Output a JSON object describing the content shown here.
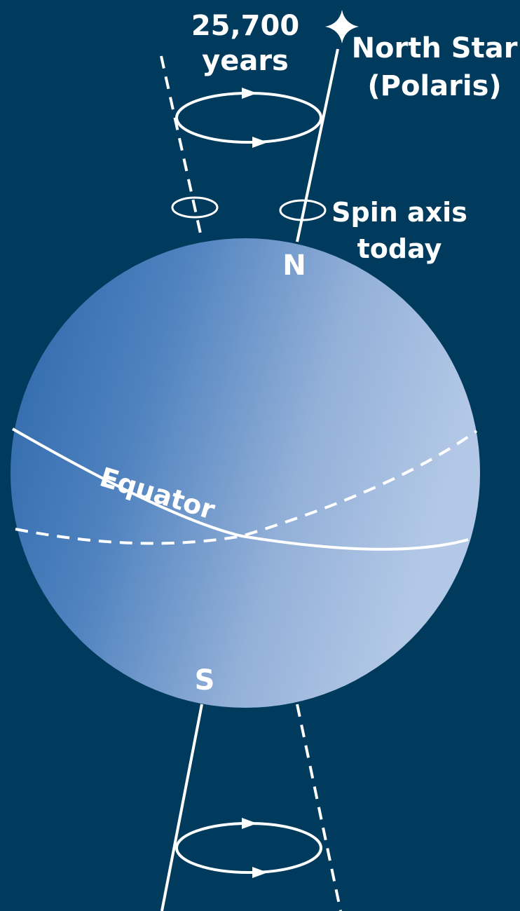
{
  "labels": {
    "period_value": "25,700",
    "period_unit": "years",
    "star_name": "North Star",
    "star_alias": "(Polaris)",
    "axis_line1": "Spin axis",
    "axis_line2": "today",
    "north": "N",
    "south": "S",
    "equator": "Equator"
  }
}
